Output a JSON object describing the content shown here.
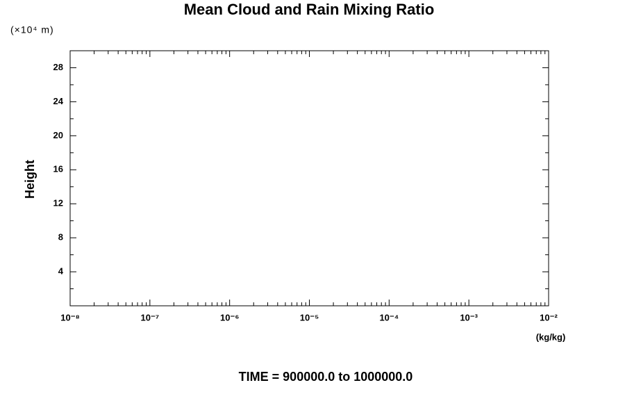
{
  "chart_data": {
    "type": "line",
    "title": "Mean Cloud and Rain Mixing Ratio",
    "y_unit": "(×10⁴ m)",
    "ylabel": "Height",
    "x_unit": "(kg/kg)",
    "annotation": "TIME = 900000.0 to 1000000.0",
    "xlog": true,
    "grid": false,
    "series": [],
    "xlim": [
      1e-08,
      0.01
    ],
    "xticks": [
      {
        "value": 1e-08,
        "label": "10⁻⁸"
      },
      {
        "value": 1e-07,
        "label": "10⁻⁷"
      },
      {
        "value": 1e-06,
        "label": "10⁻⁶"
      },
      {
        "value": 1e-05,
        "label": "10⁻⁵"
      },
      {
        "value": 0.0001,
        "label": "10⁻⁴"
      },
      {
        "value": 0.001,
        "label": "10⁻³"
      },
      {
        "value": 0.01,
        "label": "10⁻²"
      }
    ],
    "ylim": [
      0,
      30
    ],
    "yticks": [
      4,
      8,
      12,
      16,
      20,
      24,
      28
    ],
    "yminorticks": [
      2,
      6,
      10,
      14,
      18,
      22,
      26
    ]
  }
}
